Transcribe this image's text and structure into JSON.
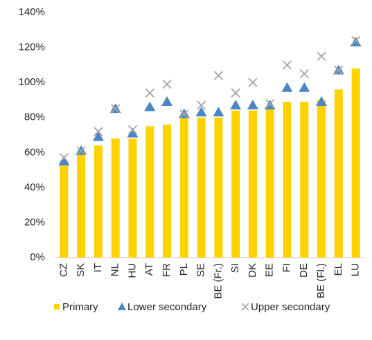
{
  "chart_data": {
    "type": "bar",
    "categories": [
      "CZ",
      "SK",
      "IT",
      "NL",
      "HU",
      "AT",
      "FR",
      "PL",
      "SE",
      "BE (Fr.)",
      "SI",
      "DK",
      "EE",
      "FI",
      "DE",
      "BE (Fl.)",
      "EL",
      "LU"
    ],
    "series": [
      {
        "name": "Primary",
        "color": "#ffd200",
        "marker": "bar",
        "values": [
          55,
          60,
          64,
          68,
          68,
          75,
          76,
          80,
          80,
          80,
          84,
          84,
          86,
          89,
          89,
          90,
          96,
          108
        ]
      },
      {
        "name": "Lower secondary",
        "color": "#4a86c5",
        "marker": "triangle",
        "values": [
          55,
          61,
          69,
          85,
          71,
          86,
          89,
          82,
          83,
          83,
          87,
          87,
          87,
          97,
          97,
          89,
          107,
          123
        ]
      },
      {
        "name": "Upper secondary",
        "color": "#a6a6a6",
        "marker": "x",
        "values": [
          57,
          61,
          72,
          85,
          73,
          94,
          99,
          82,
          87,
          104,
          94,
          100,
          88,
          110,
          105,
          115,
          107,
          124
        ]
      }
    ],
    "ylim": [
      0,
      140
    ],
    "yticks": [
      {
        "value": 0,
        "label": "0%"
      },
      {
        "value": 20,
        "label": "20%"
      },
      {
        "value": 40,
        "label": "40%"
      },
      {
        "value": 60,
        "label": "60%"
      },
      {
        "value": 80,
        "label": "80%"
      },
      {
        "value": 100,
        "label": "100%"
      },
      {
        "value": 120,
        "label": "120%"
      },
      {
        "value": 140,
        "label": "140%"
      }
    ],
    "grid": false,
    "legend": "bottom"
  }
}
